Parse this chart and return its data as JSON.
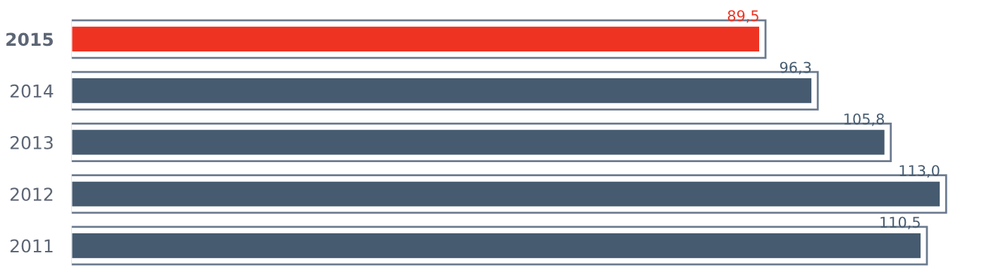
{
  "chart_data": {
    "type": "bar",
    "orientation": "horizontal",
    "categories": [
      "2015",
      "2014",
      "2013",
      "2012",
      "2011"
    ],
    "values": [
      89.5,
      96.3,
      105.8,
      113.0,
      110.5
    ],
    "colors": [
      "#ef3323",
      "#465b70",
      "#465b70",
      "#465b70",
      "#465b70"
    ],
    "value_labels": [
      "89,5",
      "96,3",
      "105,8",
      "113,0",
      "110,5"
    ],
    "tick_labels": "y",
    "grid": false,
    "legend": false
  }
}
